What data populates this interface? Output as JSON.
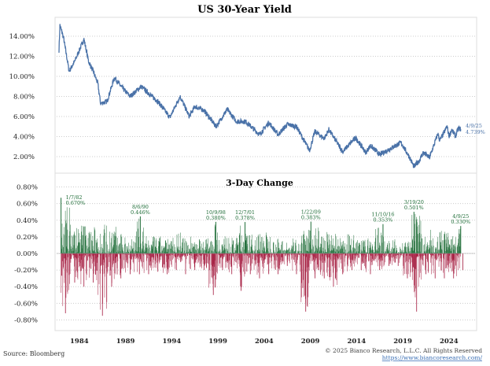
{
  "chart_data": [
    {
      "type": "line",
      "title": "US 30-Year Yield",
      "ylim": [
        0,
        16
      ],
      "yticks": [
        "2.00%",
        "4.00%",
        "6.00%",
        "8.00%",
        "10.00%",
        "12.00%",
        "14.00%"
      ],
      "grid": true,
      "color": "#4a72a8",
      "series": [
        {
          "x": [
            1981.8,
            1981.9,
            1982.3,
            1982.9,
            1983.5,
            1984.5,
            1985.0,
            1985.5,
            1986.0,
            1986.3,
            1987.0,
            1987.8,
            1988.5,
            1989.5,
            1990.7,
            1991.5,
            1992.5,
            1993.8,
            1994.9,
            1995.9,
            1996.5,
            1997.5,
            1998.8,
            2000.0,
            2001.0,
            2002.0,
            2003.5,
            2004.5,
            2005.5,
            2006.5,
            2007.5,
            2008.9,
            2009.5,
            2010.5,
            2011.0,
            2012.5,
            2013.9,
            2015.0,
            2015.5,
            2016.5,
            2018.8,
            2019.7,
            2020.2,
            2020.8,
            2021.2,
            2021.9,
            2022.8,
            2023.0,
            2023.8,
            2024.0,
            2024.3,
            2024.7,
            2025.0,
            2025.27
          ],
          "y": [
            12.6,
            15.1,
            13.8,
            10.5,
            11.5,
            13.7,
            11.5,
            10.5,
            9.3,
            7.3,
            7.5,
            9.9,
            9.0,
            8.0,
            9.0,
            8.3,
            7.5,
            5.9,
            8.0,
            6.0,
            7.0,
            6.6,
            5.0,
            6.7,
            5.5,
            5.5,
            4.2,
            5.4,
            4.2,
            5.2,
            5.0,
            2.6,
            4.5,
            3.8,
            4.7,
            2.5,
            3.9,
            2.4,
            3.1,
            2.2,
            3.4,
            2.0,
            1.0,
            1.6,
            2.4,
            1.9,
            4.3,
            3.6,
            5.0,
            4.0,
            4.7,
            4.0,
            4.8,
            4.739
          ]
        }
      ],
      "end_label": {
        "date": "4/9/25",
        "value": "4.739%"
      }
    },
    {
      "type": "bar",
      "title": "3-Day Change",
      "ylim": [
        -0.8,
        0.8
      ],
      "yticks": [
        "0.80%",
        "0.60%",
        "0.40%",
        "0.20%",
        "0.00%",
        "-0.20%",
        "-0.40%",
        "-0.60%",
        "-0.80%"
      ],
      "xticks": [
        "1984",
        "1989",
        "1994",
        "1999",
        "2004",
        "2009",
        "2014",
        "2019",
        "2024"
      ],
      "grid": true,
      "positive_color": "#1f6d38",
      "negative_color": "#a3183c",
      "yearly_max_rise": {
        "years": [
          1982,
          1983,
          1984,
          1985,
          1986,
          1987,
          1988,
          1989,
          1990,
          1991,
          1992,
          1993,
          1994,
          1995,
          1996,
          1997,
          1998,
          1999,
          2000,
          2001,
          2002,
          2003,
          2004,
          2005,
          2006,
          2007,
          2008,
          2009,
          2010,
          2011,
          2012,
          2013,
          2014,
          2015,
          2016,
          2017,
          2018,
          2019,
          2020,
          2021,
          2022,
          2023,
          2024,
          2025
        ],
        "rise": [
          0.67,
          0.4,
          0.42,
          0.35,
          0.4,
          0.38,
          0.25,
          0.25,
          0.446,
          0.22,
          0.22,
          0.2,
          0.3,
          0.2,
          0.25,
          0.2,
          0.38,
          0.25,
          0.2,
          0.378,
          0.25,
          0.3,
          0.28,
          0.2,
          0.15,
          0.2,
          0.3,
          0.383,
          0.28,
          0.25,
          0.2,
          0.25,
          0.18,
          0.22,
          0.353,
          0.18,
          0.18,
          0.15,
          0.501,
          0.25,
          0.3,
          0.3,
          0.25,
          0.33
        ],
        "fall": [
          -0.72,
          -0.35,
          -0.4,
          -0.35,
          -0.75,
          -0.4,
          -0.3,
          -0.25,
          -0.25,
          -0.25,
          -0.22,
          -0.25,
          -0.2,
          -0.25,
          -0.2,
          -0.2,
          -0.5,
          -0.2,
          -0.25,
          -0.45,
          -0.25,
          -0.3,
          -0.25,
          -0.25,
          -0.15,
          -0.25,
          -0.7,
          -0.3,
          -0.3,
          -0.4,
          -0.25,
          -0.2,
          -0.2,
          -0.25,
          -0.2,
          -0.15,
          -0.15,
          -0.3,
          -0.7,
          -0.25,
          -0.3,
          -0.3,
          -0.3,
          -0.2
        ]
      },
      "annotations": [
        {
          "date": "1/7/82",
          "value": "0.670%",
          "x": 1982.02,
          "y": 0.67
        },
        {
          "date": "8/6/90",
          "value": "0.446%",
          "x": 1990.6,
          "y": 0.446
        },
        {
          "date": "10/9/98",
          "value": "0.380%",
          "x": 1998.77,
          "y": 0.38
        },
        {
          "date": "12/7/01",
          "value": "0.378%",
          "x": 2001.93,
          "y": 0.378
        },
        {
          "date": "1/22/09",
          "value": "0.383%",
          "x": 2009.06,
          "y": 0.383
        },
        {
          "date": "11/10/16",
          "value": "0.353%",
          "x": 2016.86,
          "y": 0.353
        },
        {
          "date": "3/19/20",
          "value": "0.501%",
          "x": 2020.21,
          "y": 0.501
        },
        {
          "date": "4/9/25",
          "value": "0.330%",
          "x": 2025.27,
          "y": 0.33
        }
      ]
    }
  ],
  "footer": {
    "source": "Source: Bloomberg",
    "copyright": "© 2025 Bianco Research, L.L.C. All Rights Reserved",
    "url": "https://www.biancoresearch.com/"
  }
}
